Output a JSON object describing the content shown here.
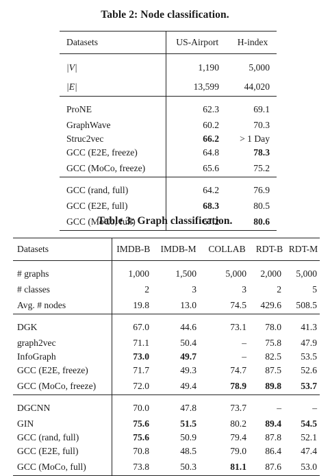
{
  "table2": {
    "caption": "Table 2: Node classification.",
    "header": [
      "Datasets",
      "US-Airport",
      "H-index"
    ],
    "stats": [
      {
        "label": "|V|",
        "values": [
          "1,190",
          "5,000"
        ]
      },
      {
        "label": "|E|",
        "values": [
          "13,599",
          "44,020"
        ]
      }
    ],
    "sections": [
      [
        {
          "label": "ProNE",
          "values": [
            "62.3",
            "69.1"
          ],
          "bold": [
            false,
            false
          ]
        },
        {
          "label": "GraphWave",
          "values": [
            "60.2",
            "70.3"
          ],
          "bold": [
            false,
            false
          ]
        },
        {
          "label": "Struc2vec",
          "values": [
            "66.2",
            "> 1 Day"
          ],
          "bold": [
            true,
            false
          ]
        },
        {
          "label": "GCC (E2E, freeze)",
          "values": [
            "64.8",
            "78.3"
          ],
          "bold": [
            false,
            true
          ]
        },
        {
          "label": "GCC (MoCo, freeze)",
          "values": [
            "65.6",
            "75.2"
          ],
          "bold": [
            false,
            false
          ]
        }
      ],
      [
        {
          "label": "GCC (rand, full)",
          "values": [
            "64.2",
            "76.9"
          ],
          "bold": [
            false,
            false
          ]
        },
        {
          "label": "GCC (E2E, full)",
          "values": [
            "68.3",
            "80.5"
          ],
          "bold": [
            true,
            false
          ]
        },
        {
          "label": "GCC (MoCo, full)",
          "values": [
            "67.2",
            "80.6"
          ],
          "bold": [
            false,
            true
          ]
        }
      ]
    ]
  },
  "table3": {
    "caption": "Table 3: Graph classification.",
    "header": [
      "Datasets",
      "IMDB-B",
      "IMDB-M",
      "COLLAB",
      "RDT-B",
      "RDT-M"
    ],
    "sections": [
      [
        {
          "label": "# graphs",
          "values": [
            "1,000",
            "1,500",
            "5,000",
            "2,000",
            "5,000"
          ],
          "bold": [
            false,
            false,
            false,
            false,
            false
          ]
        },
        {
          "label": "# classes",
          "values": [
            "2",
            "3",
            "3",
            "2",
            "5"
          ],
          "bold": [
            false,
            false,
            false,
            false,
            false
          ]
        },
        {
          "label": "Avg. # nodes",
          "values": [
            "19.8",
            "13.0",
            "74.5",
            "429.6",
            "508.5"
          ],
          "bold": [
            false,
            false,
            false,
            false,
            false
          ]
        }
      ],
      [
        {
          "label": "DGK",
          "values": [
            "67.0",
            "44.6",
            "73.1",
            "78.0",
            "41.3"
          ],
          "bold": [
            false,
            false,
            false,
            false,
            false
          ]
        },
        {
          "label": "graph2vec",
          "values": [
            "71.1",
            "50.4",
            "–",
            "75.8",
            "47.9"
          ],
          "bold": [
            false,
            false,
            false,
            false,
            false
          ]
        },
        {
          "label": "InfoGraph",
          "values": [
            "73.0",
            "49.7",
            "–",
            "82.5",
            "53.5"
          ],
          "bold": [
            true,
            true,
            false,
            false,
            false
          ]
        },
        {
          "label": "GCC (E2E, freeze)",
          "values": [
            "71.7",
            "49.3",
            "74.7",
            "87.5",
            "52.6"
          ],
          "bold": [
            false,
            false,
            false,
            false,
            false
          ]
        },
        {
          "label": "GCC (MoCo, freeze)",
          "values": [
            "72.0",
            "49.4",
            "78.9",
            "89.8",
            "53.7"
          ],
          "bold": [
            false,
            false,
            true,
            true,
            true
          ]
        }
      ],
      [
        {
          "label": "DGCNN",
          "values": [
            "70.0",
            "47.8",
            "73.7",
            "–",
            "–"
          ],
          "bold": [
            false,
            false,
            false,
            false,
            false
          ]
        },
        {
          "label": "GIN",
          "values": [
            "75.6",
            "51.5",
            "80.2",
            "89.4",
            "54.5"
          ],
          "bold": [
            true,
            true,
            false,
            true,
            true
          ]
        },
        {
          "label": "GCC (rand, full)",
          "values": [
            "75.6",
            "50.9",
            "79.4",
            "87.8",
            "52.1"
          ],
          "bold": [
            true,
            false,
            false,
            false,
            false
          ]
        },
        {
          "label": "GCC (E2E, full)",
          "values": [
            "70.8",
            "48.5",
            "79.0",
            "86.4",
            "47.4"
          ],
          "bold": [
            false,
            false,
            false,
            false,
            false
          ]
        },
        {
          "label": "GCC (MoCo, full)",
          "values": [
            "73.8",
            "50.3",
            "81.1",
            "87.6",
            "53.0"
          ],
          "bold": [
            false,
            false,
            true,
            false,
            false
          ]
        }
      ]
    ]
  }
}
